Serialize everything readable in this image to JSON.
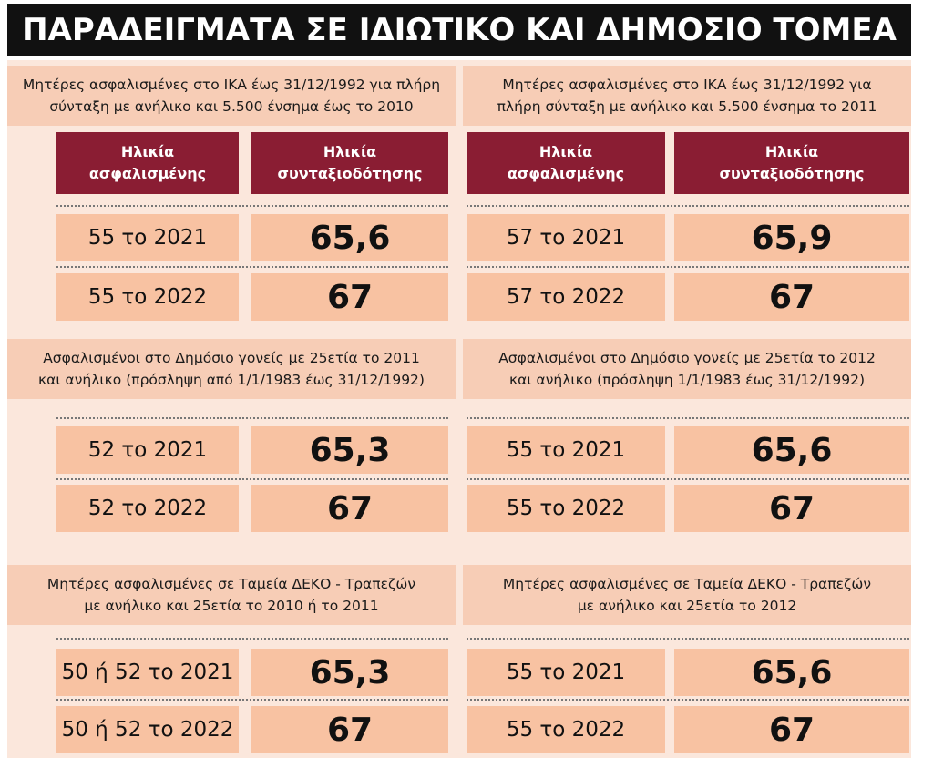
{
  "title": "ΠΑΡΑΔΕΙΓΜΑΤΑ ΣΕ ΙΔΙΩΤΙΚΟ ΚΑΙ ΔΗΜΟΣΙΟ ΤΟΜΕΑ",
  "panels": [
    {
      "caption": [
        "Μητέρες ασφαλισμένες στο ΙΚΑ έως 31/12/1992 για πλήρη",
        "σύνταξη με ανήλικο και 5.500 ένσημα έως το 2010"
      ],
      "headers": [
        [
          "Ηλικία",
          "ασφαλισμένης"
        ],
        [
          "Ηλικία",
          "συνταξιοδότησης"
        ]
      ],
      "rows": [
        [
          "55 το 2021",
          "65,6"
        ],
        [
          "55 το 2022",
          "67"
        ]
      ]
    },
    {
      "caption": [
        "Μητέρες ασφαλισμένες στο ΙΚΑ έως 31/12/1992 για",
        "πλήρη σύνταξη με ανήλικο και 5.500 ένσημα το 2011"
      ],
      "headers": [
        [
          "Ηλικία",
          "ασφαλισμένης"
        ],
        [
          "Ηλικία",
          "συνταξιοδότησης"
        ]
      ],
      "rows": [
        [
          "57 το 2021",
          "65,9"
        ],
        [
          "57 το 2022",
          "67"
        ]
      ]
    },
    {
      "caption": [
        "Ασφαλισμένοι στο Δημόσιο γονείς με 25ετία το 2011",
        "και ανήλικο (πρόσληψη από 1/1/1983 έως 31/12/1992)"
      ],
      "rows": [
        [
          "52 το 2021",
          "65,3"
        ],
        [
          "52 το 2022",
          "67"
        ]
      ]
    },
    {
      "caption": [
        "Ασφαλισμένοι στο Δημόσιο γονείς με 25ετία το 2012",
        "και ανήλικο (πρόσληψη 1/1/1983 έως 31/12/1992)"
      ],
      "rows": [
        [
          "55 το 2021",
          "65,6"
        ],
        [
          "55 το 2022",
          "67"
        ]
      ]
    },
    {
      "caption": [
        "Μητέρες ασφαλισμένες σε Ταμεία ΔΕΚΟ - Τραπεζών",
        "με ανήλικο και 25ετία το 2010 ή το 2011"
      ],
      "rows": [
        [
          "50 ή 52 το 2021",
          "65,3"
        ],
        [
          "50 ή 52 το 2022",
          "67"
        ]
      ]
    },
    {
      "caption": [
        "Μητέρες ασφαλισμένες σε Ταμεία ΔΕΚΟ - Τραπεζών",
        "με ανήλικο και 25ετία το 2012"
      ],
      "rows": [
        [
          "55 το 2021",
          "65,6"
        ],
        [
          "55 το 2022",
          "67"
        ]
      ]
    }
  ]
}
